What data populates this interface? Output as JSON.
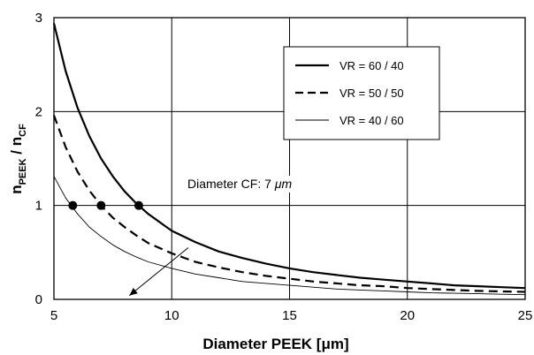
{
  "chart_data": {
    "type": "line",
    "xlabel_main": "Diameter PEEK [",
    "xlabel_unit": "μm",
    "xlabel_end": "]",
    "ylabel_n1": "n",
    "ylabel_sub1": "PEEK",
    "ylabel_sep": " / ",
    "ylabel_n2": "n",
    "ylabel_sub2": "CF",
    "xlim": [
      5,
      25
    ],
    "ylim": [
      0,
      3
    ],
    "xticks": [
      "5",
      "10",
      "15",
      "20",
      "25"
    ],
    "yticks": [
      "0",
      "1",
      "2",
      "3"
    ],
    "grid": true,
    "legend_position": "top-right",
    "series": [
      {
        "name": "VR = 60 / 40",
        "style": "solid-thick",
        "x": [
          5,
          5.5,
          6,
          6.5,
          7,
          7.5,
          8,
          8.5,
          9,
          10,
          11,
          12,
          13,
          14,
          15,
          16,
          17,
          18,
          19,
          20,
          21,
          22,
          23,
          24,
          25
        ],
        "y": [
          2.94,
          2.43,
          2.04,
          1.74,
          1.5,
          1.31,
          1.15,
          1.02,
          0.91,
          0.73,
          0.61,
          0.51,
          0.44,
          0.38,
          0.33,
          0.29,
          0.26,
          0.23,
          0.21,
          0.19,
          0.17,
          0.15,
          0.14,
          0.13,
          0.12
        ]
      },
      {
        "name": "VR = 50 / 50",
        "style": "dashed",
        "x": [
          5,
          5.5,
          6,
          6.5,
          7,
          7.5,
          8,
          8.5,
          9,
          10,
          11,
          12,
          13,
          14,
          15,
          16,
          17,
          18,
          19,
          20,
          21,
          22,
          23,
          24,
          25
        ],
        "y": [
          1.96,
          1.62,
          1.36,
          1.16,
          1.0,
          0.87,
          0.77,
          0.68,
          0.6,
          0.49,
          0.4,
          0.34,
          0.29,
          0.25,
          0.22,
          0.19,
          0.17,
          0.15,
          0.14,
          0.12,
          0.11,
          0.1,
          0.09,
          0.085,
          0.08
        ]
      },
      {
        "name": "VR = 40 / 60",
        "style": "solid-thin",
        "x": [
          5,
          5.5,
          6,
          6.5,
          7,
          7.5,
          8,
          8.5,
          9,
          10,
          11,
          12,
          13,
          14,
          15,
          16,
          17,
          18,
          19,
          20,
          21,
          22,
          23,
          24,
          25
        ],
        "y": [
          1.31,
          1.08,
          0.91,
          0.77,
          0.67,
          0.58,
          0.51,
          0.45,
          0.4,
          0.33,
          0.27,
          0.23,
          0.19,
          0.17,
          0.15,
          0.13,
          0.11,
          0.1,
          0.09,
          0.08,
          0.07,
          0.065,
          0.06,
          0.055,
          0.05
        ]
      }
    ],
    "markers": [
      {
        "x": 5.8,
        "y": 1.0
      },
      {
        "x": 7.0,
        "y": 1.0
      },
      {
        "x": 8.6,
        "y": 1.0
      }
    ],
    "annotation": {
      "text_main": "Diameter CF: 7 ",
      "text_unit": "μm",
      "arrow_from": {
        "x": 10.7,
        "y": 0.55
      },
      "arrow_to": {
        "x": 8.2,
        "y": 0.04
      }
    }
  }
}
